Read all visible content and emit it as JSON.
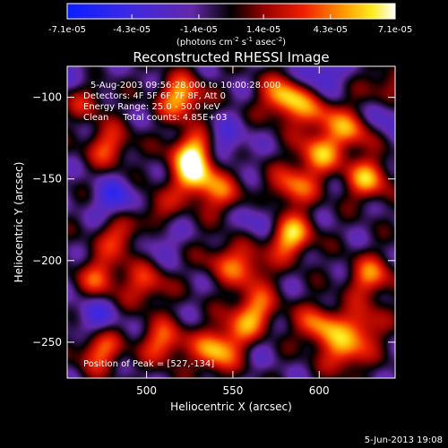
{
  "colorbar": {
    "tick_labels": [
      "-7.1e-05",
      "-4.3e-05",
      "-1.4e-05",
      "1.4e-05",
      "4.3e-05",
      "7.1e-05"
    ],
    "tick_values": [
      -7.1e-05,
      -4.3e-05,
      -1.4e-05,
      1.4e-05,
      4.3e-05,
      7.1e-05
    ],
    "range": [
      -7.1e-05,
      7.1e-05
    ],
    "unit_label_prefix": "(photons cm",
    "unit_exp1": "-2",
    "unit_mid": " s",
    "unit_exp2": "-1",
    "unit_mid2": " asec",
    "unit_exp3": "-2",
    "unit_suffix": ")"
  },
  "chart_data": {
    "type": "heatmap",
    "title": "Reconstructed RHESSI Image",
    "xlabel": "Heliocentric X (arcsec)",
    "ylabel": "Heliocentric Y (arcsec)",
    "xlim": [
      454,
      644
    ],
    "ylim": [
      -272,
      -81
    ],
    "x_ticks": [
      500,
      550,
      600
    ],
    "y_ticks": [
      -100,
      -150,
      -200,
      -250
    ],
    "annotations": [
      "5-Aug-2003 09:56:28.000 to 10:00:28.000",
      "Detectors: 4F 5F 6F 7F 8F, Att 0",
      "Energy Range: 25.0 - 50.0 keV",
      "Clean     Total counts: 4.85E+03",
      "Position of Peak = [527,-134]"
    ],
    "peak": {
      "x": 527,
      "y": -134
    },
    "hot_spots": [
      {
        "x": 527,
        "y": -134,
        "v": 1.0
      },
      {
        "x": 520,
        "y": -100,
        "v": 0.9
      },
      {
        "x": 528,
        "y": -150,
        "v": 0.85
      },
      {
        "x": 580,
        "y": -100,
        "v": 0.95
      },
      {
        "x": 583,
        "y": -185,
        "v": 0.95
      },
      {
        "x": 585,
        "y": -155,
        "v": 0.7
      },
      {
        "x": 600,
        "y": -135,
        "v": 0.75
      },
      {
        "x": 618,
        "y": -120,
        "v": 0.7
      },
      {
        "x": 628,
        "y": -150,
        "v": 0.8
      },
      {
        "x": 630,
        "y": -210,
        "v": 0.7
      },
      {
        "x": 600,
        "y": -240,
        "v": 0.75
      },
      {
        "x": 563,
        "y": -230,
        "v": 0.7
      },
      {
        "x": 540,
        "y": -256,
        "v": 0.85
      },
      {
        "x": 510,
        "y": -250,
        "v": 0.7
      },
      {
        "x": 473,
        "y": -255,
        "v": 0.7
      },
      {
        "x": 473,
        "y": -210,
        "v": 0.6
      },
      {
        "x": 485,
        "y": -185,
        "v": 0.6
      },
      {
        "x": 478,
        "y": -130,
        "v": 0.6
      },
      {
        "x": 555,
        "y": -245,
        "v": 0.65
      },
      {
        "x": 615,
        "y": -256,
        "v": 0.7
      },
      {
        "x": 500,
        "y": -215,
        "v": 0.55
      },
      {
        "x": 545,
        "y": -160,
        "v": 0.5
      },
      {
        "x": 505,
        "y": -170,
        "v": 0.45
      },
      {
        "x": 560,
        "y": -205,
        "v": 0.5
      },
      {
        "x": 598,
        "y": -110,
        "v": 0.55
      },
      {
        "x": 640,
        "y": -95,
        "v": 0.5
      },
      {
        "x": 465,
        "y": -100,
        "v": 0.5
      },
      {
        "x": 625,
        "y": -240,
        "v": 0.6
      },
      {
        "x": 545,
        "y": -200,
        "v": 0.45
      }
    ],
    "cold_spots": [
      {
        "x": 483,
        "y": -163,
        "v": -0.55
      },
      {
        "x": 545,
        "y": -128,
        "v": -0.4
      },
      {
        "x": 470,
        "y": -235,
        "v": -0.4
      },
      {
        "x": 600,
        "y": -85,
        "v": -0.5
      },
      {
        "x": 640,
        "y": -110,
        "v": -0.45
      },
      {
        "x": 505,
        "y": -185,
        "v": -0.35
      },
      {
        "x": 565,
        "y": -175,
        "v": -0.35
      },
      {
        "x": 560,
        "y": -250,
        "v": -0.3
      },
      {
        "x": 463,
        "y": -90,
        "v": -0.3
      }
    ]
  },
  "footer": {
    "date": "5-Jun-2013 19:08"
  }
}
